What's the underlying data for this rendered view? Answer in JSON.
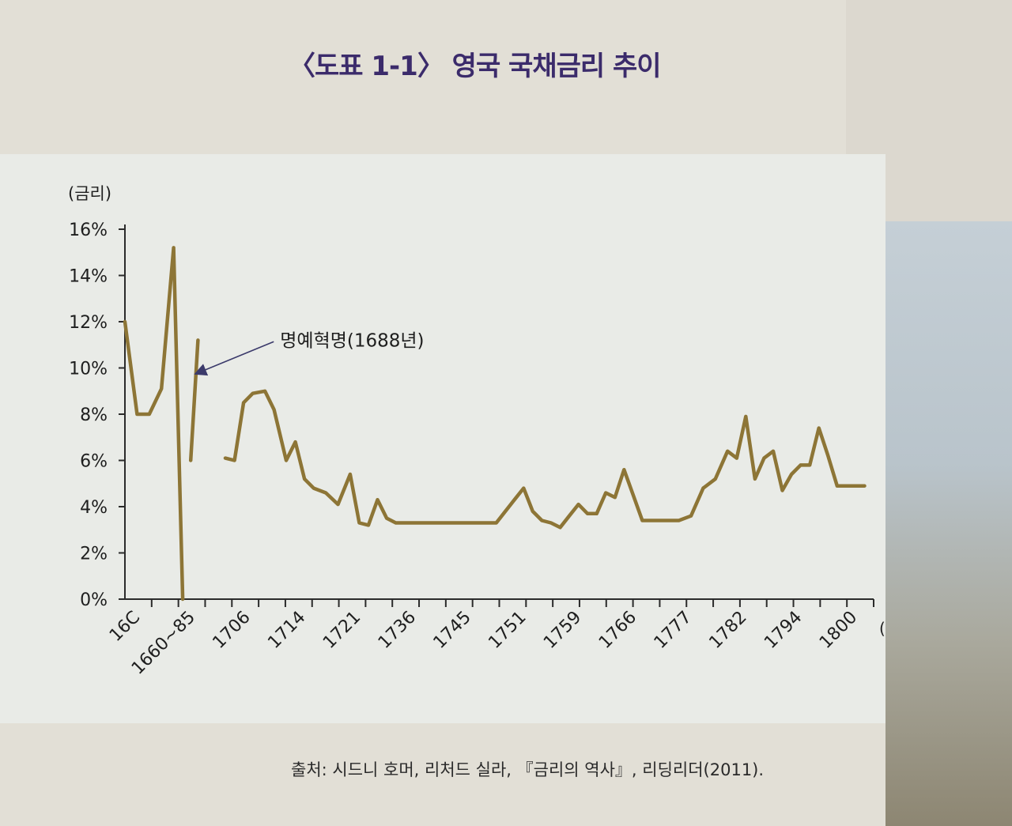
{
  "page": {
    "title": "〈도표 1-1〉 영국 국채금리 추이",
    "source": "출처: 시드니 호머, 리처드 실라, 『금리의 역사』, 리딩리더(2011)."
  },
  "colors": {
    "line": "#8d7536",
    "title": "#3b2b6b",
    "axis": "#2b2b2b"
  },
  "chart_data": {
    "type": "line",
    "ylabel": "(금리)",
    "xlabel": "(년도)",
    "ylim": [
      0,
      16
    ],
    "yticks": [
      "0%",
      "2%",
      "4%",
      "6%",
      "8%",
      "10%",
      "12%",
      "14%",
      "16%"
    ],
    "xtick_labels": [
      "16C",
      "1660~85",
      "1706",
      "1714",
      "1721",
      "1736",
      "1745",
      "1751",
      "1759",
      "1766",
      "1777",
      "1782",
      "1794",
      "1800"
    ],
    "annotation": {
      "text": "명예혁명(1688년)",
      "x_index": 12.5,
      "y": 11
    },
    "grid": false,
    "segments": [
      {
        "x": [
          0,
          2,
          4,
          6,
          8,
          9.5
        ],
        "y": [
          12,
          8,
          8,
          9.1,
          15.2,
          0
        ]
      },
      {
        "x": [
          10.8,
          12
        ],
        "y": [
          6,
          11.2
        ]
      },
      {
        "x": [
          16.5,
          18,
          19.5,
          21,
          23,
          24.5,
          26.5,
          28,
          29.5,
          31,
          33,
          35,
          37,
          38.5,
          40,
          41.5,
          43,
          44.5,
          46,
          47.5,
          49,
          50.5,
          52,
          55,
          58,
          61,
          64,
          65.5,
          67,
          68.5,
          70,
          71.5,
          73,
          74.5,
          76,
          77.5,
          79,
          80.5,
          82,
          83.5,
          85,
          87,
          89,
          91,
          93,
          95,
          97,
          99,
          100.5,
          102,
          103.5,
          105,
          106.5,
          108,
          109.5,
          111,
          112.5,
          114,
          115.5,
          117,
          118.5,
          120,
          121.5
        ],
        "y": [
          6.1,
          6.0,
          8.5,
          8.9,
          9.0,
          8.2,
          6.0,
          6.8,
          5.2,
          4.8,
          4.6,
          4.1,
          5.4,
          3.3,
          3.2,
          4.3,
          3.5,
          3.3,
          3.3,
          3.3,
          3.3,
          3.3,
          3.3,
          3.3,
          3.3,
          3.3,
          4.3,
          4.8,
          3.8,
          3.4,
          3.3,
          3.1,
          3.6,
          4.1,
          3.7,
          3.7,
          4.6,
          4.4,
          5.6,
          4.5,
          3.4,
          3.4,
          3.4,
          3.4,
          3.6,
          4.8,
          5.2,
          6.4,
          6.1,
          7.9,
          5.2,
          6.1,
          6.4,
          4.7,
          5.4,
          5.8,
          5.8,
          7.4,
          6.2,
          4.9,
          4.9,
          4.9,
          4.9
        ]
      }
    ]
  }
}
